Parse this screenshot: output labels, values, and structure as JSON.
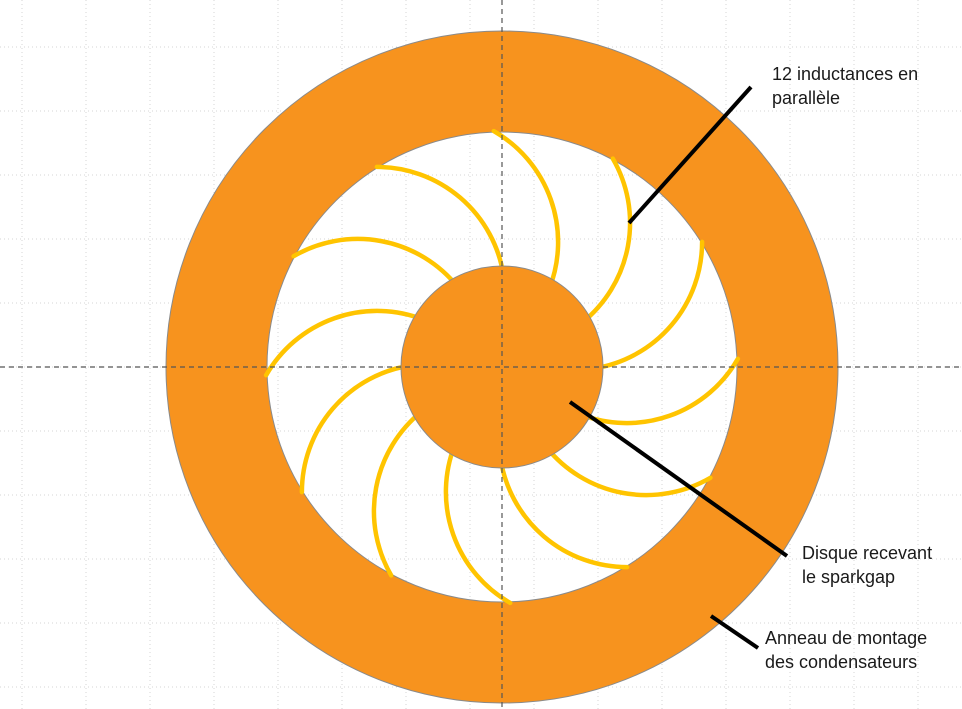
{
  "labels": {
    "inductances": {
      "line1": "12 inductances en",
      "line2": "parallèle"
    },
    "disque": {
      "line1": "Disque recevant",
      "line2": "le sparkgap"
    },
    "anneau": {
      "line1": "Anneau de montage",
      "line2": "des condensateurs"
    }
  },
  "diagram": {
    "coil_count": 12,
    "colors": {
      "ring": "#F7931E",
      "disc": "#F7931E",
      "coils": "#FFC400",
      "outline": "#8a8a8a",
      "leaders": "#000000",
      "grid": "#d4d4d4",
      "axes": "#555555"
    }
  }
}
